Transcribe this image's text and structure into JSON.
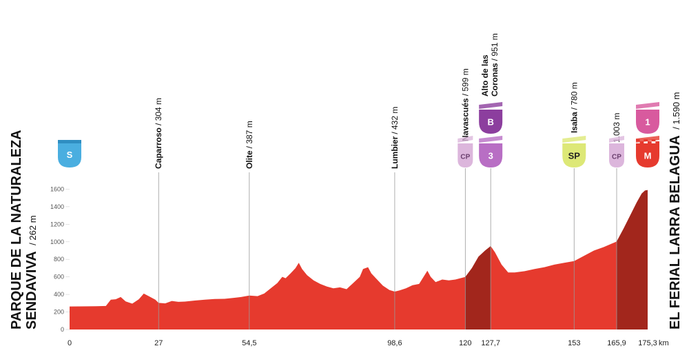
{
  "chart_data": {
    "type": "area",
    "unit_x": "km",
    "ylim": [
      0,
      1700
    ],
    "yticks": [
      0,
      200,
      400,
      600,
      800,
      1000,
      1200,
      1400,
      1600
    ],
    "xticks": [
      {
        "km": 0,
        "label": "0"
      },
      {
        "km": 27,
        "label": "27"
      },
      {
        "km": 54.5,
        "label": "54,5"
      },
      {
        "km": 98.6,
        "label": "98,6"
      },
      {
        "km": 120,
        "label": "120"
      },
      {
        "km": 127.7,
        "label": "127,7"
      },
      {
        "km": 153,
        "label": "153"
      },
      {
        "km": 165.9,
        "label": "165,9"
      },
      {
        "km": 175.3,
        "label": "175,3"
      }
    ],
    "km_suffix": "km",
    "profile": [
      [
        0,
        262
      ],
      [
        8,
        265
      ],
      [
        11,
        268
      ],
      [
        12.5,
        340
      ],
      [
        14,
        345
      ],
      [
        15.5,
        370
      ],
      [
        17,
        320
      ],
      [
        19,
        295
      ],
      [
        21,
        345
      ],
      [
        22.5,
        410
      ],
      [
        24,
        380
      ],
      [
        26,
        340
      ],
      [
        27,
        304
      ],
      [
        29,
        298
      ],
      [
        31,
        325
      ],
      [
        33,
        315
      ],
      [
        35,
        318
      ],
      [
        38,
        330
      ],
      [
        41,
        340
      ],
      [
        44,
        348
      ],
      [
        47,
        350
      ],
      [
        50,
        362
      ],
      [
        52,
        370
      ],
      [
        54.5,
        387
      ],
      [
        57,
        380
      ],
      [
        59,
        410
      ],
      [
        61,
        470
      ],
      [
        63,
        530
      ],
      [
        64.5,
        600
      ],
      [
        65.5,
        585
      ],
      [
        67,
        640
      ],
      [
        68.5,
        700
      ],
      [
        69.5,
        760
      ],
      [
        70.5,
        690
      ],
      [
        72,
        620
      ],
      [
        74,
        560
      ],
      [
        76,
        520
      ],
      [
        78,
        490
      ],
      [
        80,
        470
      ],
      [
        82,
        480
      ],
      [
        84,
        460
      ],
      [
        86,
        530
      ],
      [
        88,
        600
      ],
      [
        89,
        690
      ],
      [
        90.5,
        710
      ],
      [
        91.5,
        640
      ],
      [
        93,
        580
      ],
      [
        95,
        500
      ],
      [
        97,
        450
      ],
      [
        98.6,
        432
      ],
      [
        100,
        445
      ],
      [
        102,
        470
      ],
      [
        104,
        505
      ],
      [
        106,
        520
      ],
      [
        107.5,
        610
      ],
      [
        108.5,
        670
      ],
      [
        109.5,
        600
      ],
      [
        111,
        540
      ],
      [
        113,
        570
      ],
      [
        115,
        560
      ],
      [
        117,
        570
      ],
      [
        120,
        599
      ],
      [
        122,
        700
      ],
      [
        124,
        830
      ],
      [
        126,
        900
      ],
      [
        127.7,
        951
      ],
      [
        129,
        880
      ],
      [
        131,
        740
      ],
      [
        133,
        650
      ],
      [
        135,
        650
      ],
      [
        138,
        665
      ],
      [
        141,
        690
      ],
      [
        144,
        710
      ],
      [
        147,
        740
      ],
      [
        150,
        760
      ],
      [
        153,
        780
      ],
      [
        156,
        840
      ],
      [
        159,
        900
      ],
      [
        162,
        940
      ],
      [
        165.9,
        1003
      ],
      [
        168,
        1150
      ],
      [
        170,
        1300
      ],
      [
        172,
        1450
      ],
      [
        173.5,
        1550
      ],
      [
        174.5,
        1585
      ],
      [
        175.3,
        1590
      ]
    ],
    "shaded_segments": [
      [
        120,
        127.7
      ],
      [
        165.9,
        175.3
      ]
    ],
    "colors": {
      "area": "#e63a2e",
      "shade": "#a2261c",
      "marker_line": "#9a9a9a"
    }
  },
  "start": {
    "name_line1": "PARQUE DE LA NATURALEZA",
    "name_line2": "SENDAVIVA",
    "alt": "/ 262 m",
    "badge": "S",
    "badge_color": "#4aaee0"
  },
  "finish": {
    "name": "EL FERIAL LARRA BELAGUA",
    "alt": "/ 1.590 m"
  },
  "waypoints": [
    {
      "km": 27,
      "name": "Caparroso",
      "alt": "/ 304 m"
    },
    {
      "km": 54.5,
      "name": "Olite",
      "alt": "/ 387 m"
    },
    {
      "km": 98.6,
      "name": "Lumbier",
      "alt": "/ 432 m"
    },
    {
      "km": 120,
      "name": "Navascués",
      "alt": "/ 599 m"
    },
    {
      "km": 127.7,
      "name_line1": "Alto de las",
      "name_line2": "Coronas",
      "alt": "/ 951 m"
    },
    {
      "km": 153,
      "name": "Isaba",
      "alt": "/ 780 m"
    },
    {
      "km": 165.9,
      "name": "",
      "alt": "1.003 m"
    }
  ],
  "badges": [
    {
      "km": 120,
      "label": "CP",
      "color": "#dcb6dc",
      "text_color": "#6a3f6e",
      "small": true,
      "level": "low"
    },
    {
      "km": 127.7,
      "label": "3",
      "color": "#b86ec4",
      "text_color": "#ffffff",
      "small": false,
      "level": "low"
    },
    {
      "km": 127.7,
      "label": "B",
      "color": "#8c3e9e",
      "text_color": "#ffffff",
      "small": false,
      "level": "high"
    },
    {
      "km": 153,
      "label": "SP",
      "color": "#dde877",
      "text_color": "#222222",
      "small": false,
      "level": "low"
    },
    {
      "km": 165.9,
      "label": "CP",
      "color": "#dcb6dc",
      "text_color": "#6a3f6e",
      "small": true,
      "level": "low"
    },
    {
      "km": 175.3,
      "label": "M",
      "color": "#e63a2e",
      "text_color": "#ffffff",
      "small": false,
      "level": "low",
      "checkered": true
    },
    {
      "km": 175.3,
      "label": "1",
      "color": "#d85a9e",
      "text_color": "#ffffff",
      "small": false,
      "level": "high"
    }
  ]
}
